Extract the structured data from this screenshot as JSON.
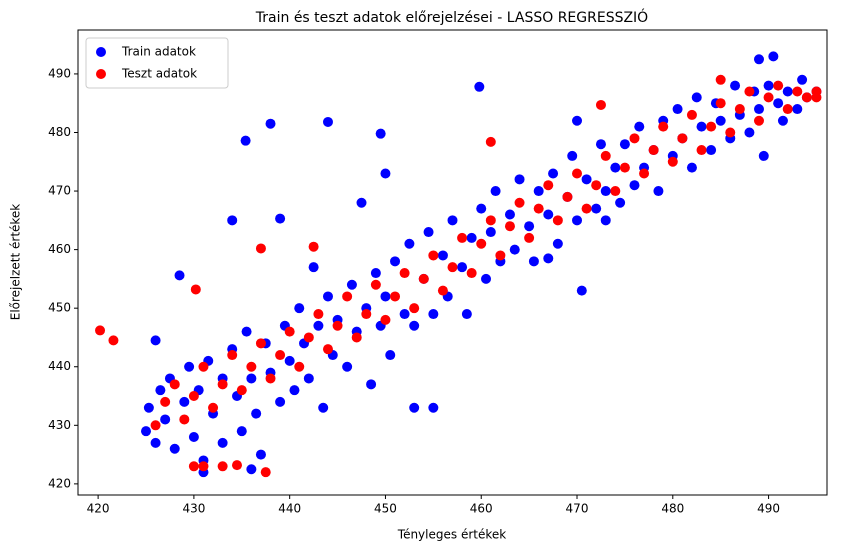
{
  "chart_data": {
    "type": "scatter",
    "title": "Train és teszt adatok előrejelzései - LASSO REGRESSZIÓ",
    "x_label": "Tényleges értékek",
    "y_label": "Előrejelzett értékek",
    "xlim": [
      417.9,
      496.1
    ],
    "ylim": [
      418.1,
      497.5
    ],
    "xticks": [
      420,
      430,
      440,
      450,
      460,
      470,
      480,
      490
    ],
    "yticks": [
      420,
      430,
      440,
      450,
      460,
      470,
      480,
      490
    ],
    "legend": "upper left",
    "series": [
      {
        "name": "Train adatok",
        "color": "#0000ff",
        "x": [
          425,
          425.3,
          426,
          426.5,
          427,
          427.5,
          428,
          429,
          429.5,
          430,
          430.5,
          431,
          431.5,
          432,
          433,
          433,
          434,
          434.5,
          435,
          435.5,
          436,
          436.5,
          437,
          437.5,
          438,
          439,
          439.5,
          440,
          440.5,
          441,
          441.5,
          442,
          443,
          443.5,
          444,
          444.5,
          445,
          446,
          446.5,
          447,
          448,
          448.5,
          449,
          449.5,
          450,
          450.5,
          451,
          452,
          452.5,
          453,
          453,
          454,
          454.5,
          455,
          456,
          456.5,
          457,
          458,
          458.5,
          459,
          460,
          460.5,
          461,
          461.5,
          462,
          463,
          463.5,
          464,
          465,
          465.5,
          466,
          467,
          467.5,
          468,
          469,
          469.5,
          470,
          470.5,
          471,
          472,
          472.5,
          473,
          474,
          474.5,
          475,
          476,
          476.5,
          477,
          478,
          478.5,
          479,
          480,
          480.5,
          481,
          482,
          482.5,
          483,
          484,
          484.5,
          485,
          486,
          486.5,
          487,
          488,
          488.5,
          489,
          489.5,
          490,
          490.5,
          491,
          491.5,
          492,
          493,
          493.5,
          494,
          495,
          489,
          435.4,
          438,
          444,
          449.5,
          459.8,
          434,
          439,
          428.5,
          442.5,
          426,
          447.5,
          450,
          470,
          467,
          473,
          455,
          431,
          436
        ],
        "values": [
          429,
          433,
          427,
          436,
          431,
          438,
          426,
          434,
          440,
          428,
          436,
          424,
          441,
          432,
          438,
          427,
          443,
          435,
          429,
          446,
          438,
          432,
          425,
          444,
          439,
          434,
          447,
          441,
          436,
          450,
          444,
          438,
          447,
          433,
          452,
          442,
          448,
          440,
          454,
          446,
          450,
          437,
          456,
          447,
          452,
          442,
          458,
          449,
          461,
          447,
          433,
          455,
          463,
          449,
          459,
          452,
          465,
          457,
          449,
          462,
          467,
          455,
          463,
          470,
          458,
          466,
          460,
          472,
          464,
          458,
          470,
          466,
          473,
          461,
          469,
          476,
          465,
          453,
          472,
          467,
          478,
          470,
          474,
          468,
          478,
          471,
          481,
          474,
          477,
          470,
          482,
          476,
          484,
          479,
          474,
          486,
          481,
          477,
          485,
          482,
          479,
          488,
          483,
          480,
          487,
          484,
          476,
          488,
          493,
          485,
          482,
          487,
          484,
          489,
          486,
          487,
          492.5,
          478.6,
          481.5,
          481.8,
          479.8,
          487.8,
          465,
          465.3,
          455.6,
          457,
          444.5,
          468,
          473,
          482,
          458.5,
          465,
          433,
          422,
          422.5
        ]
      },
      {
        "name": "Teszt adatok",
        "color": "#ff0000",
        "x": [
          420.2,
          421.6,
          430.2,
          437,
          442.5,
          461,
          472.5,
          485,
          430,
          431,
          433,
          434.5,
          437.5,
          426,
          427,
          428,
          429,
          430,
          431,
          432,
          433,
          434,
          435,
          436,
          437,
          438,
          439,
          440,
          441,
          442,
          443,
          444,
          445,
          446,
          447,
          448,
          449,
          450,
          451,
          452,
          453,
          454,
          455,
          456,
          457,
          458,
          459,
          460,
          461,
          462,
          463,
          464,
          465,
          466,
          467,
          468,
          469,
          470,
          471,
          472,
          473,
          474,
          475,
          476,
          477,
          478,
          479,
          480,
          481,
          482,
          483,
          484,
          485,
          486,
          487,
          488,
          489,
          490,
          491,
          492,
          493,
          494,
          495,
          495
        ],
        "values": [
          446.2,
          444.5,
          453.2,
          460.2,
          460.5,
          478.4,
          484.7,
          489,
          423,
          423,
          423,
          423.2,
          422,
          430,
          434,
          437,
          431,
          435,
          440,
          433,
          437,
          442,
          436,
          440,
          444,
          438,
          442,
          446,
          440,
          445,
          449,
          443,
          447,
          452,
          445,
          449,
          454,
          448,
          452,
          456,
          450,
          455,
          459,
          453,
          457,
          462,
          456,
          461,
          465,
          459,
          464,
          468,
          462,
          467,
          471,
          465,
          469,
          473,
          467,
          471,
          476,
          470,
          474,
          479,
          473,
          477,
          481,
          475,
          479,
          483,
          477,
          481,
          485,
          480,
          484,
          487,
          482,
          486,
          488,
          484,
          487,
          486,
          486,
          487
        ]
      }
    ]
  }
}
